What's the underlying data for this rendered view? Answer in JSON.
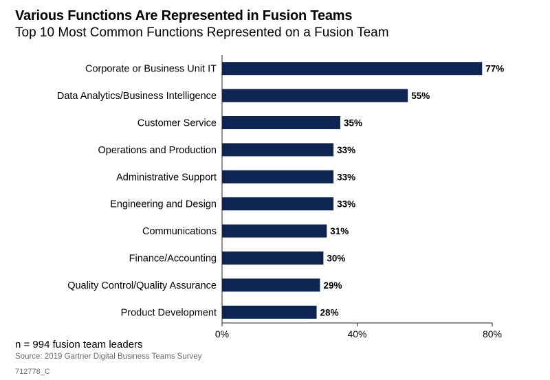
{
  "chart_data": {
    "type": "bar",
    "orientation": "horizontal",
    "title": "Various Functions Are Represented in Fusion Teams",
    "subtitle": "Top 10 Most Common Functions Represented on a Fusion Team",
    "categories": [
      "Corporate or Business Unit IT",
      "Data Analytics/Business Intelligence",
      "Customer Service",
      "Operations and Production",
      "Administrative Support",
      "Engineering and Design",
      "Communications",
      "Finance/Accounting",
      "Quality Control/Quality Assurance",
      "Product Development"
    ],
    "values": [
      77,
      55,
      35,
      33,
      33,
      33,
      31,
      30,
      29,
      28
    ],
    "value_labels": [
      "77%",
      "55%",
      "35%",
      "33%",
      "33%",
      "33%",
      "31%",
      "30%",
      "29%",
      "28%"
    ],
    "xlim": [
      0,
      80
    ],
    "x_ticks": [
      0,
      40,
      80
    ],
    "x_tick_labels": [
      "0%",
      "40%",
      "80%"
    ],
    "xlabel": "",
    "ylabel": "",
    "bar_color": "#0e2452",
    "grid": false
  },
  "footer": {
    "note": "n = 994 fusion team leaders",
    "source": "Source: 2019 Gartner Digital Business Teams Survey",
    "code": "712778_C"
  }
}
